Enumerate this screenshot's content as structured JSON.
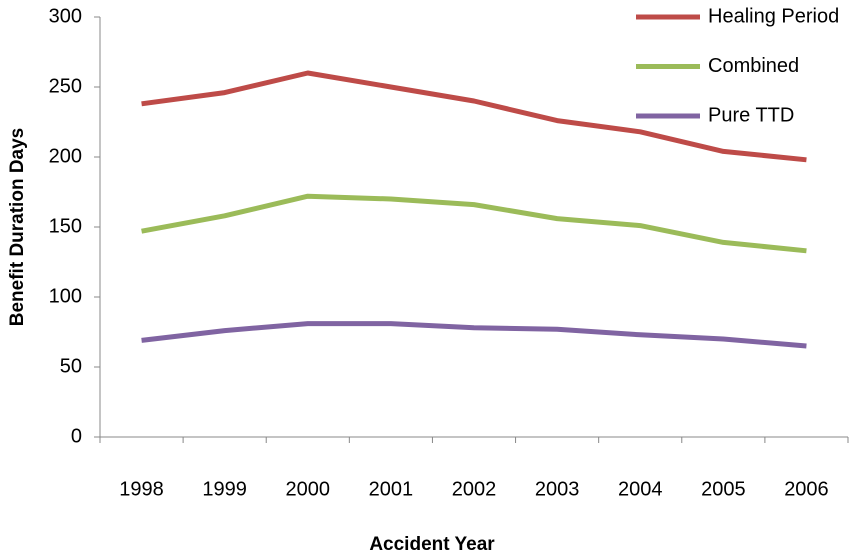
{
  "chart_data": {
    "type": "line",
    "x_label": "Accident Year",
    "y_label": "Benefit Duration Days",
    "categories": [
      "1998",
      "1999",
      "2000",
      "2001",
      "2002",
      "2003",
      "2004",
      "2005",
      "2006"
    ],
    "series": [
      {
        "name": "Healing Period",
        "color": "#be4b48",
        "values": [
          238,
          246,
          260,
          250,
          240,
          226,
          218,
          204,
          198
        ]
      },
      {
        "name": "Combined",
        "color": "#9bbb59",
        "values": [
          147,
          158,
          172,
          170,
          166,
          156,
          151,
          139,
          133
        ]
      },
      {
        "name": "Pure TTD",
        "color": "#8064a2",
        "values": [
          69,
          76,
          81,
          81,
          78,
          77,
          73,
          70,
          65
        ]
      }
    ],
    "ylim": [
      0,
      300
    ],
    "yticks": [
      0,
      50,
      100,
      150,
      200,
      250,
      300
    ],
    "grid": false,
    "legend": "top-right"
  }
}
